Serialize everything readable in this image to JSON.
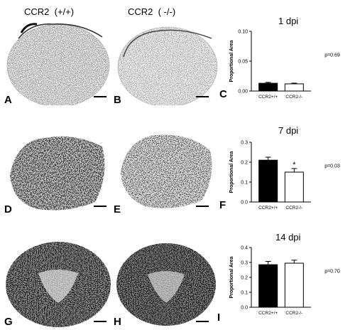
{
  "column_headers": [
    "CCR2  (+/+)",
    "CCR2  ( -/-)"
  ],
  "panel_letters": [
    "A",
    "B",
    "C",
    "D",
    "E",
    "F",
    "G",
    "H",
    "I"
  ],
  "chart_data": [
    {
      "type": "bar",
      "title": "1 dpi",
      "ylabel": "Proportional Area",
      "categories": [
        "CCR2+/+",
        "CCR2-/-"
      ],
      "values": [
        0.013,
        0.012
      ],
      "errors": [
        0.0015,
        0.0012
      ],
      "fills": [
        "#000000",
        "#ffffff"
      ],
      "ylim": [
        0,
        0.1
      ],
      "yticks": [
        "0.00",
        "0.05",
        "0.10"
      ],
      "ytick_values": [
        0,
        0.05,
        0.1
      ],
      "annotation": "p=0.69",
      "significance": ""
    },
    {
      "type": "bar",
      "title": "7 dpi",
      "ylabel": "Proportional Area",
      "categories": [
        "CCR2+/+",
        "CCR2-/-"
      ],
      "values": [
        0.21,
        0.15
      ],
      "errors": [
        0.015,
        0.018
      ],
      "fills": [
        "#000000",
        "#ffffff"
      ],
      "ylim": [
        0,
        0.3
      ],
      "yticks": [
        "0.0",
        "0.1",
        "0.2",
        "0.3"
      ],
      "ytick_values": [
        0,
        0.1,
        0.2,
        0.3
      ],
      "annotation": "p=0.03",
      "significance": "*"
    },
    {
      "type": "bar",
      "title": "14 dpi",
      "ylabel": "Proportional Area",
      "categories": [
        "CCR2+/+",
        "CCR2-/-"
      ],
      "values": [
        0.285,
        0.295
      ],
      "errors": [
        0.022,
        0.02
      ],
      "fills": [
        "#000000",
        "#ffffff"
      ],
      "ylim": [
        0,
        0.4
      ],
      "yticks": [
        "0.0",
        "0.1",
        "0.2",
        "0.3",
        "0.4"
      ],
      "ytick_values": [
        0,
        0.1,
        0.2,
        0.3,
        0.4
      ],
      "annotation": "p=0.70",
      "significance": ""
    }
  ]
}
